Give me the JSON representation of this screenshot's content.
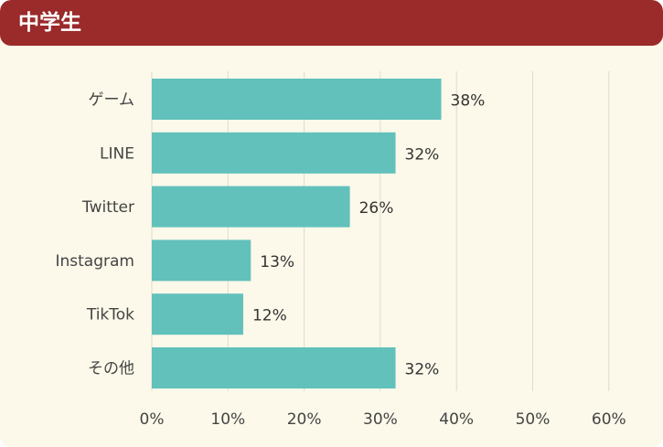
{
  "header": {
    "title": "中学生"
  },
  "colors": {
    "header_bg": "#9b2a2a",
    "panel_bg": "#fcf9ea",
    "bar": "#62c1bb",
    "grid": "#dcdcd0"
  },
  "chart_data": {
    "type": "bar",
    "orientation": "horizontal",
    "title": "",
    "categories": [
      "ゲーム",
      "LINE",
      "Twitter",
      "Instagram",
      "TikTok",
      "その他"
    ],
    "values": [
      38,
      32,
      26,
      13,
      12,
      32
    ],
    "value_labels": [
      "38%",
      "32%",
      "26%",
      "13%",
      "12%",
      "32%"
    ],
    "xlim": [
      0,
      60
    ],
    "x_ticks": [
      0,
      10,
      20,
      30,
      40,
      50,
      60
    ],
    "x_tick_labels": [
      "0%",
      "10%",
      "20%",
      "30%",
      "40%",
      "50%",
      "60%"
    ],
    "grid": true,
    "legend": "none"
  }
}
